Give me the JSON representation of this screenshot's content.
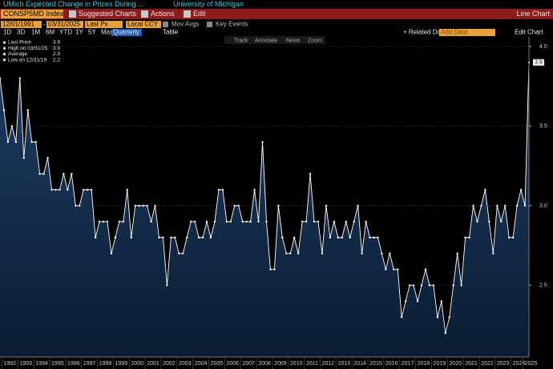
{
  "title_bar": {
    "title": "UMich Expected Change in Prices During ...",
    "source": "University of Michigan"
  },
  "menu_bar": {
    "ticker": "CONSP5MD Index",
    "items": [
      "Suggested Charts",
      "Actions",
      "Edit"
    ],
    "chart_type": "Line Chart"
  },
  "settings_bar": {
    "start_date": "12/01/1991",
    "separator": "-",
    "end_date": "03/31/2025",
    "field": "Last Px",
    "currency": "Local CCY",
    "options": [
      "Mov Avgs",
      "Key Events"
    ]
  },
  "range_bar": {
    "ranges": [
      "1D",
      "3D",
      "1M",
      "6M",
      "YTD",
      "1Y",
      "5Y",
      "Max"
    ],
    "frequency": "Quarterly",
    "table": "Table",
    "related": "+ Related Dat",
    "add_data": "Add Data",
    "edit_chart": "Edit Chart"
  },
  "chart_tools": [
    "Track",
    "Annotate",
    "News",
    "Zoom"
  ],
  "legend": [
    {
      "label": "Last Price",
      "value": "3.9"
    },
    {
      "label": "High on 03/31/25",
      "value": "3.9"
    },
    {
      "label": "Average",
      "value": "2.9"
    },
    {
      "label": "Low on 12/31/19",
      "value": "2.2"
    }
  ],
  "chart_data": {
    "type": "line",
    "categories": [
      null,
      null,
      "1992",
      null,
      null,
      null,
      "1993",
      null,
      null,
      null,
      "1994",
      null,
      null,
      null,
      "1995",
      null,
      null,
      null,
      "1996",
      null,
      null,
      null,
      "1997",
      null,
      null,
      null,
      "1998",
      null,
      null,
      null,
      "1999",
      null,
      null,
      null,
      "2000",
      null,
      null,
      null,
      "2001",
      null,
      null,
      null,
      "2002",
      null,
      null,
      null,
      "2003",
      null,
      null,
      null,
      "2004",
      null,
      null,
      null,
      "2005",
      null,
      null,
      null,
      "2006",
      null,
      null,
      null,
      "2007",
      null,
      null,
      null,
      "2008",
      null,
      null,
      null,
      "2009",
      null,
      null,
      null,
      "2010",
      null,
      null,
      null,
      "2011",
      null,
      null,
      null,
      "2012",
      null,
      null,
      null,
      "2013",
      null,
      null,
      null,
      "2014",
      null,
      null,
      null,
      "2015",
      null,
      null,
      null,
      "2016",
      null,
      null,
      null,
      "2017",
      null,
      null,
      null,
      "2018",
      null,
      null,
      null,
      "2019",
      null,
      null,
      null,
      "2020",
      null,
      null,
      null,
      "2021",
      null,
      null,
      null,
      "2022",
      null,
      null,
      null,
      "2023",
      null,
      null,
      null,
      "2024",
      null,
      null,
      "2025"
    ],
    "series": [
      {
        "name": "Last Price",
        "color": "#ffffff",
        "values": [
          3.8,
          3.6,
          3.4,
          3.5,
          3.4,
          3.8,
          3.3,
          3.6,
          3.4,
          3.4,
          3.2,
          3.2,
          3.3,
          3.1,
          3.1,
          3.1,
          3.2,
          3.1,
          3.2,
          3.0,
          3.0,
          3.1,
          3.1,
          3.1,
          2.8,
          2.9,
          2.9,
          2.9,
          2.7,
          2.8,
          2.9,
          2.9,
          3.1,
          2.8,
          3.0,
          3.0,
          3.0,
          3.0,
          2.9,
          3.0,
          2.8,
          2.8,
          2.5,
          2.8,
          2.8,
          2.7,
          2.7,
          2.8,
          2.9,
          2.9,
          2.8,
          2.8,
          2.9,
          2.8,
          2.9,
          3.1,
          3.1,
          2.9,
          2.9,
          3.0,
          3.0,
          2.9,
          2.9,
          2.9,
          3.1,
          2.9,
          3.4,
          2.9,
          2.6,
          2.6,
          3.0,
          2.8,
          2.7,
          2.7,
          2.8,
          2.7,
          2.9,
          2.9,
          3.2,
          2.9,
          2.9,
          2.7,
          3.0,
          2.8,
          2.9,
          2.8,
          2.8,
          2.9,
          2.8,
          2.9,
          3.0,
          2.7,
          2.9,
          2.8,
          2.8,
          2.8,
          2.7,
          2.6,
          2.7,
          2.6,
          2.6,
          2.3,
          2.4,
          2.5,
          2.5,
          2.4,
          2.5,
          2.6,
          2.5,
          2.5,
          2.3,
          2.4,
          2.2,
          2.3,
          2.5,
          2.7,
          2.5,
          2.8,
          2.8,
          3.0,
          2.9,
          3.0,
          3.1,
          2.9,
          2.7,
          3.0,
          2.9,
          3.0,
          2.8,
          2.8,
          3.0,
          3.1,
          3.0,
          3.9
        ]
      }
    ],
    "ylim": [
      2.05,
      4.06
    ],
    "yticks": [
      {
        "value": 4,
        "label": "4.0"
      },
      3.5,
      {
        "value": 3,
        "label": "3.0"
      },
      2.5
    ],
    "grid": true
  }
}
